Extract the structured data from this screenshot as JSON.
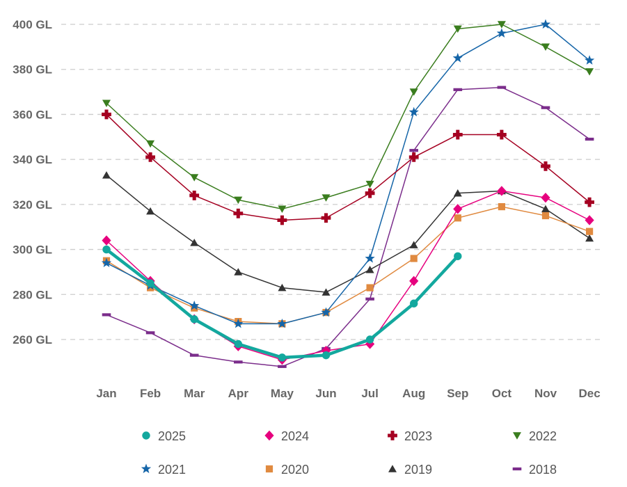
{
  "chart_data": {
    "type": "line",
    "categories": [
      "Jan",
      "Feb",
      "Mar",
      "Apr",
      "May",
      "Jun",
      "Jul",
      "Aug",
      "Sep",
      "Oct",
      "Nov",
      "Dec"
    ],
    "ylim": [
      240,
      400
    ],
    "yticks": [
      260,
      280,
      300,
      320,
      340,
      360,
      380,
      400
    ],
    "ytick_labels": [
      "260 GL",
      "280 GL",
      "300 GL",
      "320 GL",
      "340 GL",
      "360 GL",
      "380 GL",
      "400 GL"
    ],
    "grid": true,
    "legend_position": "bottom",
    "series": [
      {
        "name": "2025",
        "color": "#13a89e",
        "marker": "circle",
        "values": [
          300,
          285,
          269,
          258,
          252,
          253,
          260,
          276,
          297,
          null,
          null,
          null
        ]
      },
      {
        "name": "2024",
        "color": "#e6007e",
        "marker": "diamond",
        "values": [
          304,
          286,
          269,
          257,
          251,
          255,
          258,
          286,
          318,
          326,
          323,
          313
        ]
      },
      {
        "name": "2023",
        "color": "#a50021",
        "marker": "plus",
        "values": [
          360,
          341,
          324,
          316,
          313,
          314,
          325,
          341,
          351,
          351,
          337,
          321
        ]
      },
      {
        "name": "2022",
        "color": "#3a7d1e",
        "marker": "triangle-down",
        "values": [
          365,
          347,
          332,
          322,
          318,
          323,
          329,
          370,
          398,
          400,
          390,
          379
        ]
      },
      {
        "name": "2021",
        "color": "#1565a8",
        "marker": "star",
        "values": [
          294,
          284,
          275,
          267,
          267,
          272,
          296,
          361,
          385,
          396,
          400,
          384
        ]
      },
      {
        "name": "2020",
        "color": "#e08a40",
        "marker": "square",
        "values": [
          295,
          283,
          274,
          268,
          267,
          272,
          283,
          296,
          314,
          319,
          315,
          308
        ]
      },
      {
        "name": "2019",
        "color": "#333333",
        "marker": "triangle-up",
        "values": [
          333,
          317,
          303,
          290,
          283,
          281,
          291,
          302,
          325,
          326,
          318,
          305
        ]
      },
      {
        "name": "2018",
        "color": "#7b2d8b",
        "marker": "dash",
        "values": [
          271,
          263,
          253,
          250,
          248,
          256,
          278,
          344,
          371,
          372,
          363,
          349
        ]
      }
    ]
  }
}
